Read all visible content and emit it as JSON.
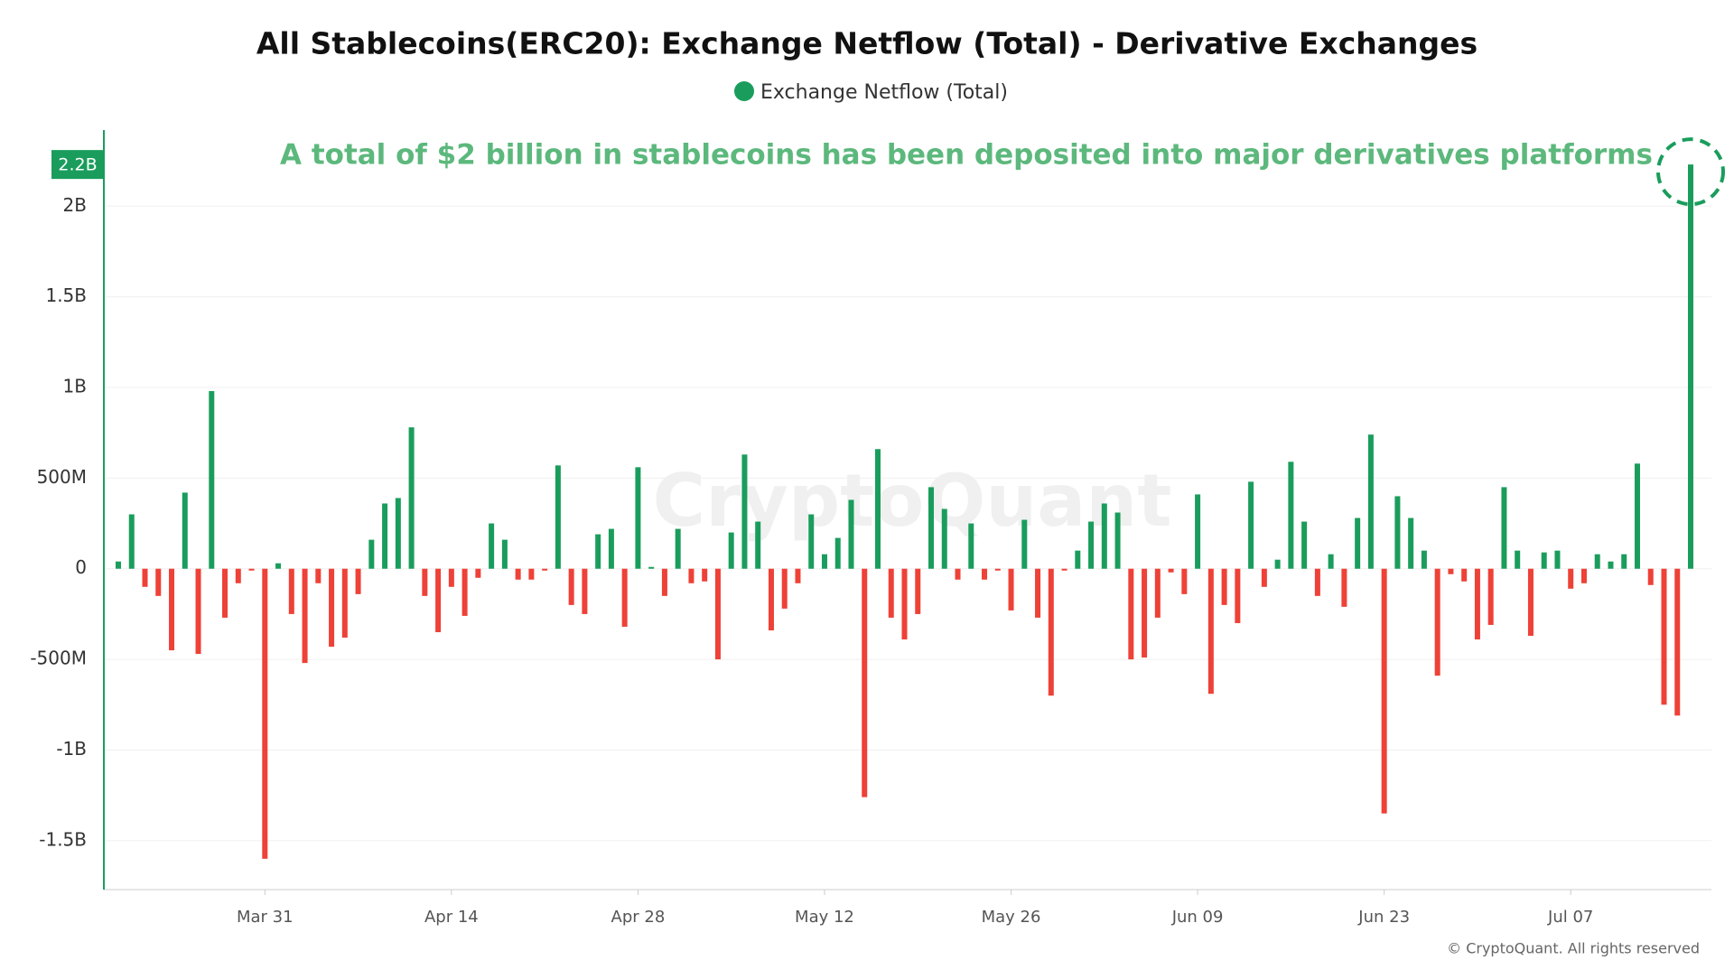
{
  "chart_data": {
    "type": "bar",
    "title": "All Stablecoins(ERC20): Exchange Netflow (Total) - Derivative Exchanges",
    "annotation": "A total of $2 billion in stablecoins has been deposited into major derivatives platforms",
    "current_label": "2.2B",
    "watermark": "CryptoQuant",
    "credit": "© CryptoQuant. All rights reserved",
    "colors": {
      "positive": "#1a9d5c",
      "negative": "#ee4137"
    },
    "annotation_color": "#5cb87c",
    "grid": true,
    "ylim": [
      -1.77,
      2.42
    ],
    "yticks": [
      {
        "value": -1.5,
        "label": "-1.5B"
      },
      {
        "value": -1,
        "label": "-1B"
      },
      {
        "value": -0.5,
        "label": "-500M"
      },
      0,
      {
        "value": 0.5,
        "label": "500M"
      },
      {
        "value": 1,
        "label": "1B"
      },
      {
        "value": 1.5,
        "label": "1.5B"
      },
      {
        "value": 2,
        "label": "2B"
      }
    ],
    "categories": [
      null,
      null,
      null,
      null,
      null,
      null,
      null,
      null,
      null,
      null,
      null,
      "Mar 31",
      null,
      null,
      null,
      null,
      null,
      null,
      null,
      null,
      null,
      null,
      null,
      null,
      null,
      "Apr 14",
      null,
      null,
      null,
      null,
      null,
      null,
      null,
      null,
      null,
      null,
      null,
      null,
      null,
      "Apr 28",
      null,
      null,
      null,
      null,
      null,
      null,
      null,
      null,
      null,
      null,
      null,
      null,
      null,
      "May 12",
      null,
      null,
      null,
      null,
      null,
      null,
      null,
      null,
      null,
      null,
      null,
      null,
      null,
      "May 26",
      null,
      null,
      null,
      null,
      null,
      null,
      null,
      null,
      null,
      null,
      null,
      null,
      null,
      "Jun 09",
      null,
      null,
      null,
      null,
      null,
      null,
      null,
      null,
      null,
      null,
      null,
      null,
      null,
      "Jun 23",
      null,
      null,
      null,
      null,
      null,
      null,
      null,
      null,
      null,
      null,
      null,
      null,
      null,
      "Jul 07",
      null,
      null,
      null,
      null,
      null,
      null,
      null,
      null,
      null
    ],
    "series": [
      {
        "name": "Exchange Netflow (Total)",
        "color": "#1a9d5c",
        "values": [
          0.04,
          0.3,
          -0.1,
          -0.15,
          -0.45,
          0.42,
          -0.47,
          0.98,
          -0.27,
          -0.08,
          -0.01,
          -1.6,
          0.03,
          -0.25,
          -0.52,
          -0.08,
          -0.43,
          -0.38,
          -0.14,
          0.16,
          0.36,
          0.39,
          0.78,
          -0.15,
          -0.35,
          -0.1,
          -0.26,
          -0.05,
          0.25,
          0.16,
          -0.06,
          -0.06,
          -0.01,
          0.57,
          -0.2,
          -0.25,
          0.19,
          0.22,
          -0.32,
          0.56,
          0.01,
          -0.15,
          0.22,
          -0.08,
          -0.07,
          -0.5,
          0.2,
          0.63,
          0.26,
          -0.34,
          -0.22,
          -0.08,
          0.3,
          0.08,
          0.17,
          0.38,
          -1.26,
          0.66,
          -0.27,
          -0.39,
          -0.25,
          0.45,
          0.33,
          -0.06,
          0.25,
          -0.06,
          -0.01,
          -0.23,
          0.27,
          -0.27,
          -0.7,
          -0.01,
          0.1,
          0.26,
          0.36,
          0.31,
          -0.5,
          -0.49,
          -0.27,
          -0.02,
          -0.14,
          0.41,
          -0.69,
          -0.2,
          -0.3,
          0.48,
          -0.1,
          0.05,
          0.59,
          0.26,
          -0.15,
          0.08,
          -0.21,
          0.28,
          0.74,
          -1.35,
          0.4,
          0.28,
          0.1,
          -0.59,
          -0.03,
          -0.07,
          -0.39,
          -0.31,
          0.45,
          0.1,
          -0.37,
          0.09,
          0.1,
          -0.11,
          -0.08,
          0.08,
          0.04,
          0.08,
          0.58,
          -0.09,
          -0.75,
          -0.81,
          2.23
        ]
      }
    ]
  }
}
